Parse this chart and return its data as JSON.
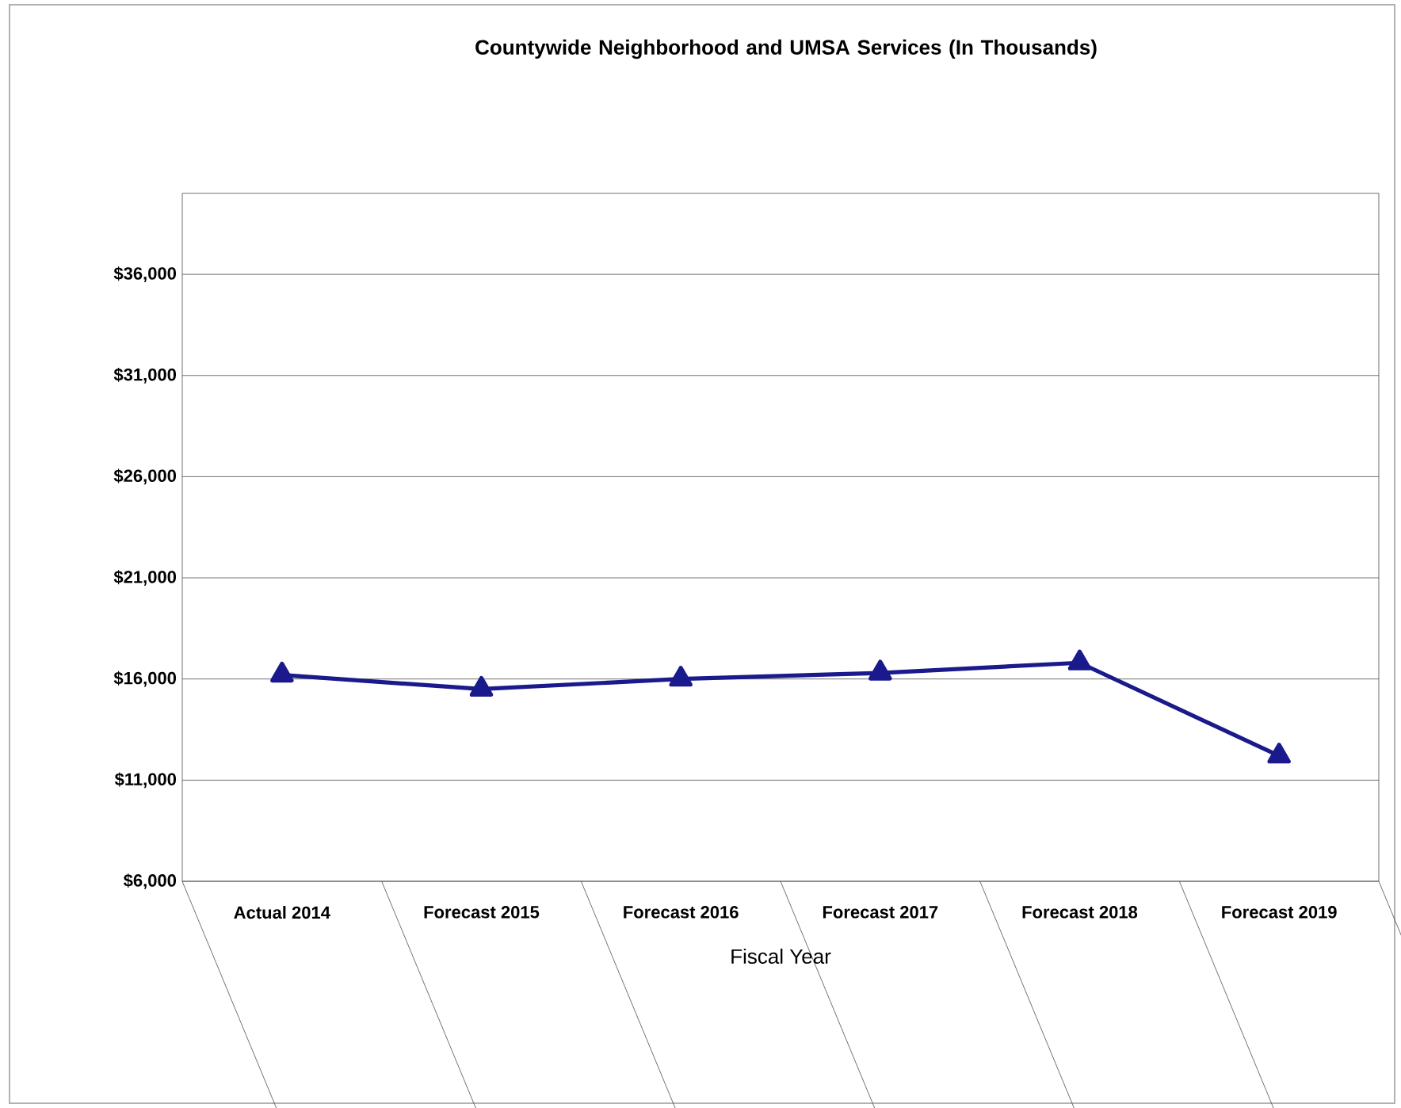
{
  "chart_data": {
    "type": "line",
    "title": "Countywide Neighborhood and UMSA Services (In Thousands)",
    "xlabel": "Fiscal Year",
    "categories": [
      "Actual 2014",
      "Forecast 2015",
      "Forecast 2016",
      "Forecast 2017",
      "Forecast 2018",
      "Forecast 2019"
    ],
    "series": [
      {
        "color": "#1a1a8c",
        "values": [
          16200,
          15500,
          16000,
          16300,
          16800,
          12200
        ]
      }
    ],
    "ylim": [
      6000,
      40000
    ],
    "yticks": [
      {
        "value": 6000,
        "label": "$6,000"
      },
      {
        "value": 11000,
        "label": "$11,000"
      },
      {
        "value": 16000,
        "label": "$16,000"
      },
      {
        "value": 21000,
        "label": "$21,000"
      },
      {
        "value": 26000,
        "label": "$26,000"
      },
      {
        "value": 31000,
        "label": "$31,000"
      },
      {
        "value": 36000,
        "label": "$36,000"
      }
    ],
    "grid": "y",
    "marker": "triangle",
    "line_style": "solid"
  }
}
